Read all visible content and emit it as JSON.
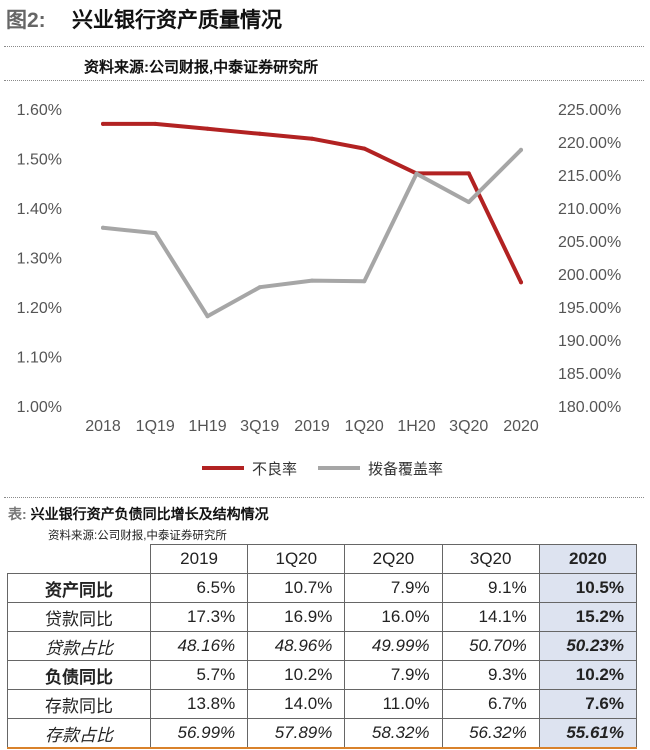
{
  "figure": {
    "label": "图2:",
    "title": "兴业银行资产质量情况",
    "source": "资料来源:公司财报,中泰证券研究所"
  },
  "chart_data": {
    "type": "line",
    "categories": [
      "2018",
      "1Q19",
      "1H19",
      "3Q19",
      "2019",
      "1Q20",
      "1H20",
      "3Q20",
      "2020"
    ],
    "series": [
      {
        "name": "不良率",
        "axis": "left",
        "color": "#b22222",
        "values": [
          1.57,
          1.57,
          1.56,
          1.55,
          1.54,
          1.52,
          1.47,
          1.47,
          1.25
        ]
      },
      {
        "name": "拨备覆盖率",
        "axis": "right",
        "color": "#a6a6a6",
        "values": [
          207.0,
          206.2,
          193.6,
          198.0,
          199.0,
          198.9,
          215.2,
          210.9,
          218.8
        ]
      }
    ],
    "y_left": {
      "min": 1.0,
      "max": 1.6,
      "step": 0.1,
      "ticks": [
        "1.00%",
        "1.10%",
        "1.20%",
        "1.30%",
        "1.40%",
        "1.50%",
        "1.60%"
      ]
    },
    "y_right": {
      "min": 180,
      "max": 225,
      "step": 5,
      "ticks": [
        "180.00%",
        "185.00%",
        "190.00%",
        "195.00%",
        "200.00%",
        "205.00%",
        "210.00%",
        "215.00%",
        "220.00%",
        "225.00%"
      ]
    },
    "grid": false,
    "legend": "bottom"
  },
  "table": {
    "label": "表:",
    "title": "兴业银行资产负债同比增长及结构情况",
    "source": "资料来源:公司财报,中泰证券研究所",
    "columns": [
      "2019",
      "1Q20",
      "2Q20",
      "3Q20",
      "2020"
    ],
    "rows": [
      {
        "label": "资产同比",
        "values": [
          "6.5%",
          "10.7%",
          "7.9%",
          "9.1%",
          "10.5%"
        ]
      },
      {
        "label": "贷款同比",
        "values": [
          "17.3%",
          "16.9%",
          "16.0%",
          "14.1%",
          "15.2%"
        ]
      },
      {
        "label": "贷款占比",
        "values": [
          "48.16%",
          "48.96%",
          "49.99%",
          "50.70%",
          "50.23%"
        ]
      },
      {
        "label": "负债同比",
        "values": [
          "5.7%",
          "10.2%",
          "7.9%",
          "9.3%",
          "10.2%"
        ]
      },
      {
        "label": "存款同比",
        "values": [
          "13.8%",
          "14.0%",
          "11.0%",
          "6.7%",
          "7.6%"
        ]
      },
      {
        "label": "存款占比",
        "values": [
          "56.99%",
          "57.89%",
          "58.32%",
          "56.32%",
          "55.61%"
        ]
      }
    ]
  }
}
